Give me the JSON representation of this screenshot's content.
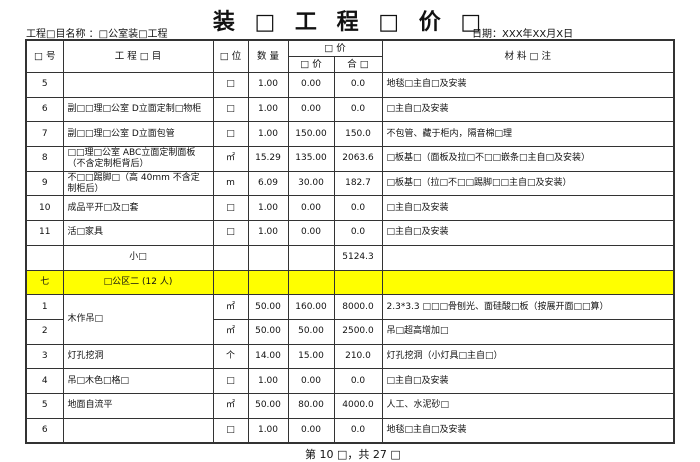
{
  "title": "装 □ 工 程 □ 价 □",
  "project": "工程□目名称 ：□公室装□工程",
  "date": "日期：XXX年XX月X日",
  "headers": {
    "seq": "□ 号",
    "item": "工 程 □ 目",
    "unit": "□ 位",
    "qty": "数 量",
    "price_group": "□ 价",
    "unit_price": "□ 价",
    "total": "合 □",
    "remarks": "材 料 □ 注"
  },
  "rows": [
    {
      "seq": "5",
      "item": "",
      "unit": "□",
      "qty": "1.00",
      "price": "0.00",
      "total": "0.0",
      "remark": "地毯□主自□及安装"
    },
    {
      "seq": "6",
      "item": "副□□理□公室 D立面定制□物柜",
      "unit": "□",
      "qty": "1.00",
      "price": "0.00",
      "total": "0.0",
      "remark": "□主自□及安装"
    },
    {
      "seq": "7",
      "item": "副□□理□公室 D立面包管",
      "unit": "□",
      "qty": "1.00",
      "price": "150.00",
      "total": "150.0",
      "remark": "不包管、藏于柜内，隔音棉□理"
    },
    {
      "seq": "8",
      "item": "□□理□公室 ABC立面定制面板（不含定制柜背后）",
      "unit": "㎡",
      "qty": "15.29",
      "price": "135.00",
      "total": "2063.6",
      "remark": "□板基□（面板及拉□不□□嵌条□主自□及安装）"
    },
    {
      "seq": "9",
      "item": "不□□踢脚□（高 40mm 不含定制柜后）",
      "unit": "m",
      "qty": "6.09",
      "price": "30.00",
      "total": "182.7",
      "remark": "□板基□（拉□不□□踢脚□□主自□及安装）"
    },
    {
      "seq": "10",
      "item": "成品平开□及□套",
      "unit": "□",
      "qty": "1.00",
      "price": "0.00",
      "total": "0.0",
      "remark": "□主自□及安装"
    },
    {
      "seq": "11",
      "item": "活□家具",
      "unit": "□",
      "qty": "1.00",
      "price": "0.00",
      "total": "0.0",
      "remark": "□主自□及安装"
    },
    {
      "type": "subtotal",
      "item": "小□",
      "total": "5124.3"
    },
    {
      "type": "section",
      "seq": "七",
      "item": "□公区二 (12 人)"
    },
    {
      "seq": "1",
      "item": "木作吊□",
      "rowspan": 2,
      "unit": "㎡",
      "qty": "50.00",
      "price": "160.00",
      "total": "8000.0",
      "remark": "2.3*3.3 □□□骨刨光、面硅酸□板（按展开面□□算）"
    },
    {
      "seq": "2",
      "merged": true,
      "unit": "㎡",
      "qty": "50.00",
      "price": "50.00",
      "total": "2500.0",
      "remark": "吊□超高增加□"
    },
    {
      "seq": "3",
      "item": "灯孔挖洞",
      "unit": "个",
      "qty": "14.00",
      "price": "15.00",
      "total": "210.0",
      "remark": "灯孔挖洞（小灯具□主自□）"
    },
    {
      "seq": "4",
      "item": "吊□木色□格□",
      "unit": "□",
      "qty": "1.00",
      "price": "0.00",
      "total": "0.0",
      "remark": "□主自□及安装"
    },
    {
      "seq": "5",
      "item": "地面自流平",
      "unit": "㎡",
      "qty": "50.00",
      "price": "80.00",
      "total": "4000.0",
      "remark": "人工、水泥砂□"
    },
    {
      "seq": "6",
      "item": "",
      "unit": "□",
      "qty": "1.00",
      "price": "0.00",
      "total": "0.0",
      "remark": "地毯□主自□及安装"
    }
  ],
  "footer": "第 10 □，共 27 □",
  "colors": {
    "section_highlight": "#ffff00",
    "border": "#333333"
  }
}
